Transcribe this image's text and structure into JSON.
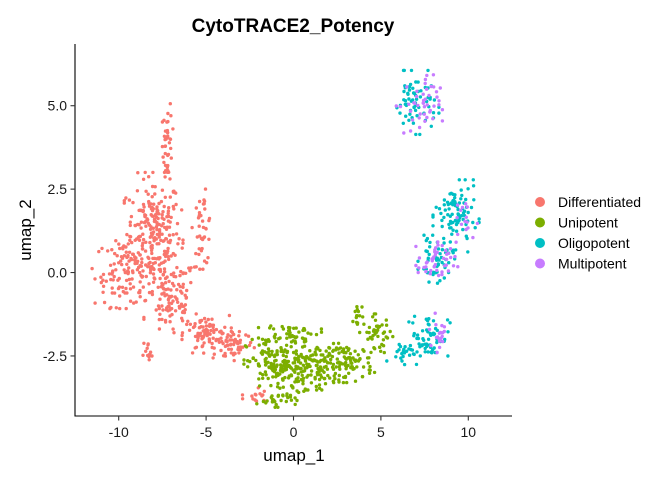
{
  "chart_data": {
    "type": "scatter",
    "title": "CytoTRACE2_Potency",
    "xlabel": "umap_1",
    "ylabel": "umap_2",
    "xlim": [
      -12.5,
      12.5
    ],
    "ylim": [
      -4.3,
      6.85
    ],
    "x_ticks": [
      {
        "value": -10,
        "label": "-10"
      },
      {
        "value": -5,
        "label": "-5"
      },
      {
        "value": 0,
        "label": "0"
      },
      {
        "value": 5,
        "label": "5"
      },
      {
        "value": 10,
        "label": "10"
      }
    ],
    "y_ticks": [
      {
        "value": -2.5,
        "label": "-2.5"
      },
      {
        "value": 0,
        "label": "0.0"
      },
      {
        "value": 2.5,
        "label": "2.5"
      },
      {
        "value": 5,
        "label": "5.0"
      }
    ],
    "grid": false,
    "legend_position": "right",
    "series": [
      {
        "name": "Differentiated",
        "color": "#F8766D",
        "clusters": [
          {
            "cx": -8.0,
            "cy": 1.2,
            "rx": 1.4,
            "ry": 1.5,
            "n": 230
          },
          {
            "cx": -9.6,
            "cy": 0.0,
            "rx": 1.6,
            "ry": 0.9,
            "n": 110
          },
          {
            "cx": -7.0,
            "cy": -0.8,
            "rx": 1.3,
            "ry": 1.1,
            "n": 110
          },
          {
            "cx": -7.2,
            "cy": 3.9,
            "rx": 0.25,
            "ry": 1.1,
            "n": 40
          },
          {
            "cx": -5.2,
            "cy": 1.3,
            "rx": 0.5,
            "ry": 1.0,
            "n": 40
          },
          {
            "cx": -5.0,
            "cy": -1.9,
            "rx": 1.2,
            "ry": 0.55,
            "n": 90
          },
          {
            "cx": -3.3,
            "cy": -2.1,
            "rx": 0.9,
            "ry": 0.45,
            "n": 50
          },
          {
            "cx": -8.3,
            "cy": -2.5,
            "rx": 0.3,
            "ry": 0.35,
            "n": 12
          },
          {
            "cx": -2.2,
            "cy": -3.7,
            "rx": 0.6,
            "ry": 0.25,
            "n": 14
          }
        ]
      },
      {
        "name": "Unipotent",
        "color": "#7CAE00",
        "clusters": [
          {
            "cx": -0.2,
            "cy": -1.8,
            "rx": 1.5,
            "ry": 0.25,
            "n": 45
          },
          {
            "cx": -0.8,
            "cy": -2.8,
            "rx": 1.7,
            "ry": 0.75,
            "n": 170
          },
          {
            "cx": 1.2,
            "cy": -2.8,
            "rx": 1.5,
            "ry": 0.6,
            "n": 110
          },
          {
            "cx": 3.2,
            "cy": -2.7,
            "rx": 1.2,
            "ry": 0.5,
            "n": 80
          },
          {
            "cx": 4.8,
            "cy": -1.9,
            "rx": 0.8,
            "ry": 0.55,
            "n": 45
          },
          {
            "cx": 3.7,
            "cy": -1.4,
            "rx": 0.25,
            "ry": 0.5,
            "n": 15
          },
          {
            "cx": -1.0,
            "cy": -3.8,
            "rx": 1.0,
            "ry": 0.2,
            "n": 30
          }
        ]
      },
      {
        "name": "Oligopotent",
        "color": "#00BFC4",
        "clusters": [
          {
            "cx": 7.0,
            "cy": 5.1,
            "rx": 1.1,
            "ry": 0.8,
            "n": 70
          },
          {
            "cx": 9.3,
            "cy": 1.7,
            "rx": 1.1,
            "ry": 0.9,
            "n": 90
          },
          {
            "cx": 8.2,
            "cy": 0.4,
            "rx": 0.9,
            "ry": 0.6,
            "n": 55
          },
          {
            "cx": 7.8,
            "cy": -1.9,
            "rx": 1.0,
            "ry": 0.6,
            "n": 60
          },
          {
            "cx": 6.3,
            "cy": -2.4,
            "rx": 0.8,
            "ry": 0.3,
            "n": 25
          }
        ]
      },
      {
        "name": "Multipotent",
        "color": "#C77CFF",
        "clusters": [
          {
            "cx": 7.2,
            "cy": 5.0,
            "rx": 1.1,
            "ry": 0.8,
            "n": 45
          },
          {
            "cx": 8.2,
            "cy": 0.3,
            "rx": 1.0,
            "ry": 0.55,
            "n": 45
          },
          {
            "cx": 9.6,
            "cy": 1.5,
            "rx": 0.8,
            "ry": 0.6,
            "n": 15
          },
          {
            "cx": 8.4,
            "cy": -1.8,
            "rx": 0.6,
            "ry": 0.5,
            "n": 20
          }
        ]
      }
    ]
  }
}
